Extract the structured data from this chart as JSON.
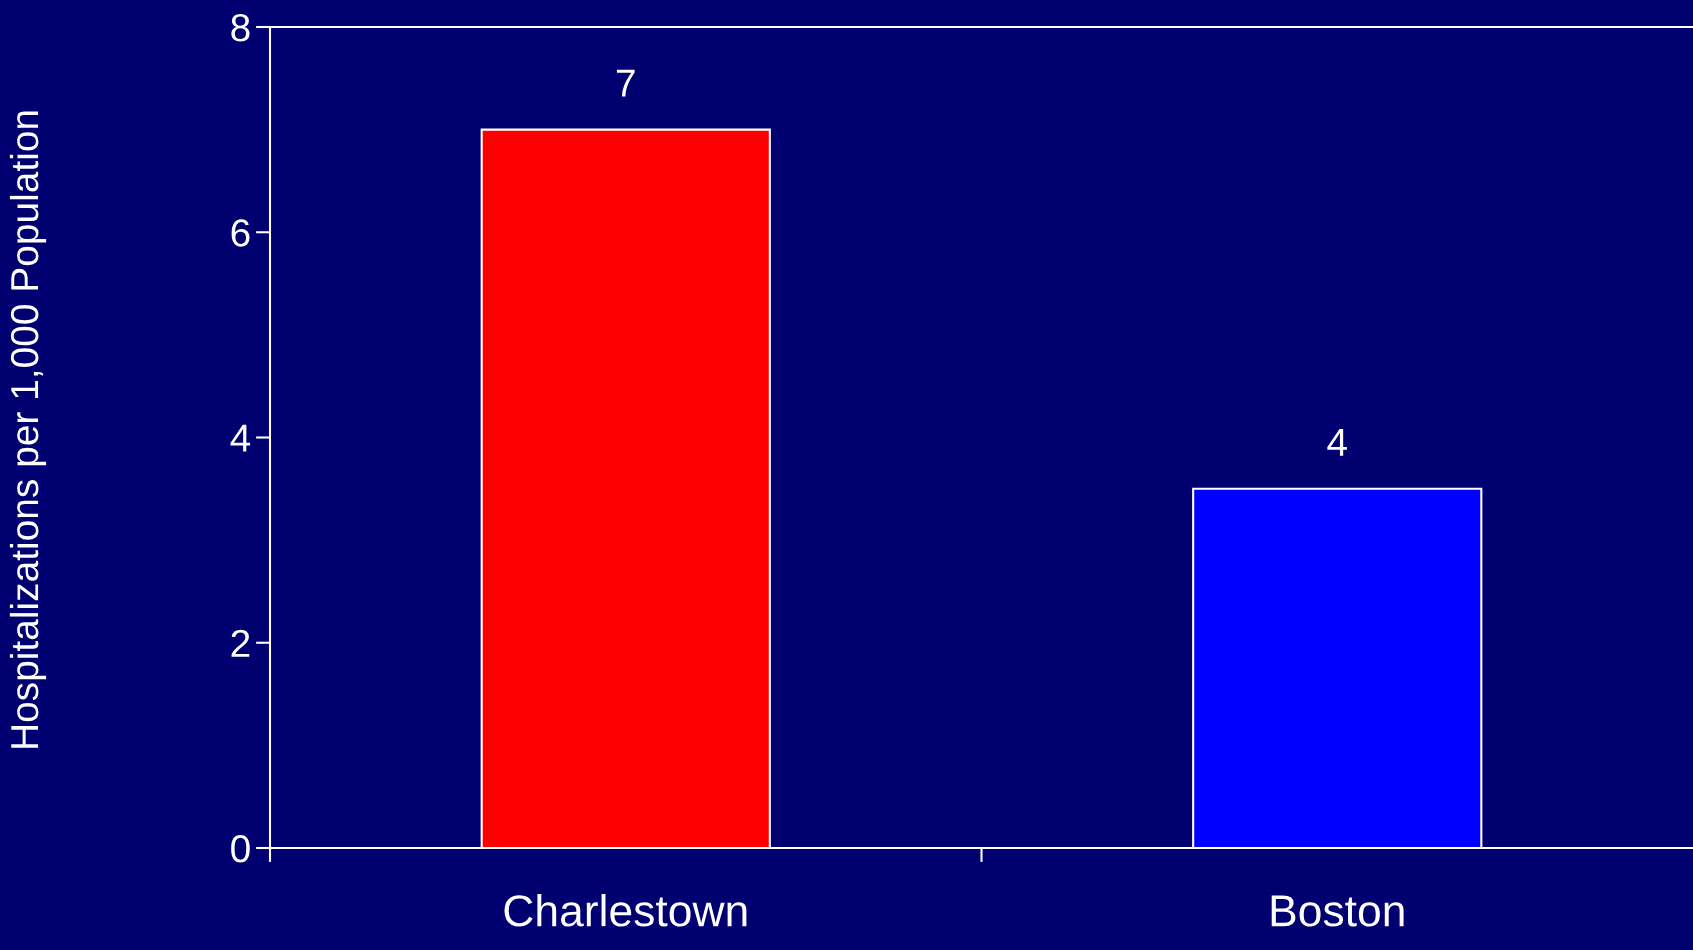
{
  "chart_data": {
    "type": "bar",
    "ylabel": "Hospitalizations per 1,000 Population",
    "categories": [
      "Charlestown",
      "Boston"
    ],
    "values": [
      7,
      3.5
    ],
    "colors": [
      "#ff0000",
      "#0000ff"
    ],
    "value_labels": [
      "7",
      "4"
    ],
    "ylim": [
      0,
      8
    ],
    "yticks": [
      0,
      2,
      4,
      6,
      8
    ],
    "grid": false,
    "legend": false
  }
}
